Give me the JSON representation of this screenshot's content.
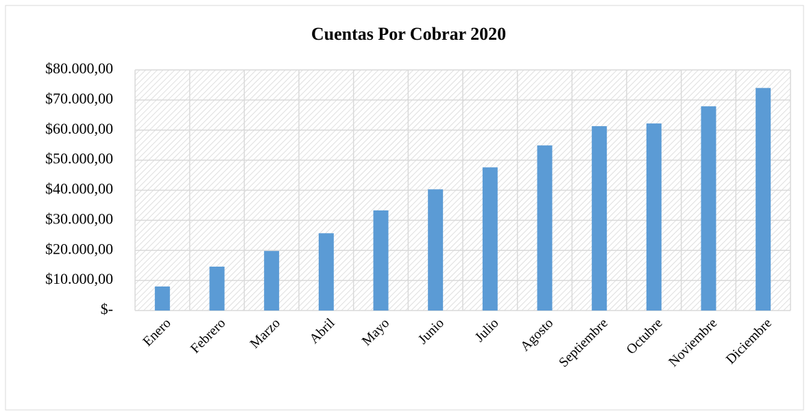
{
  "chart_data": {
    "type": "bar",
    "title": "Cuentas Por Cobrar 2020",
    "categories": [
      "Enero",
      "Febrero",
      "Marzo",
      "Abril",
      "Mayo",
      "Junio",
      "Julio",
      "Agosto",
      "Septiembre",
      "Octubre",
      "Noviembre",
      "Diciembre"
    ],
    "values": [
      8000,
      14600,
      19800,
      25700,
      33300,
      40300,
      47600,
      54900,
      61300,
      62200,
      67900,
      74000
    ],
    "color": "#5b9bd5",
    "ylim": [
      0,
      80000
    ],
    "yticks": [
      {
        "value": 0,
        "label": "$-"
      },
      {
        "value": 10000,
        "label": "$10.000,00"
      },
      {
        "value": 20000,
        "label": "$20.000,00"
      },
      {
        "value": 30000,
        "label": "$30.000,00"
      },
      {
        "value": 40000,
        "label": "$40.000,00"
      },
      {
        "value": 50000,
        "label": "$50.000,00"
      },
      {
        "value": 60000,
        "label": "$60.000,00"
      },
      {
        "value": 70000,
        "label": "$70.000,00"
      },
      {
        "value": 80000,
        "label": "$80.000,00"
      }
    ],
    "grid": true
  }
}
